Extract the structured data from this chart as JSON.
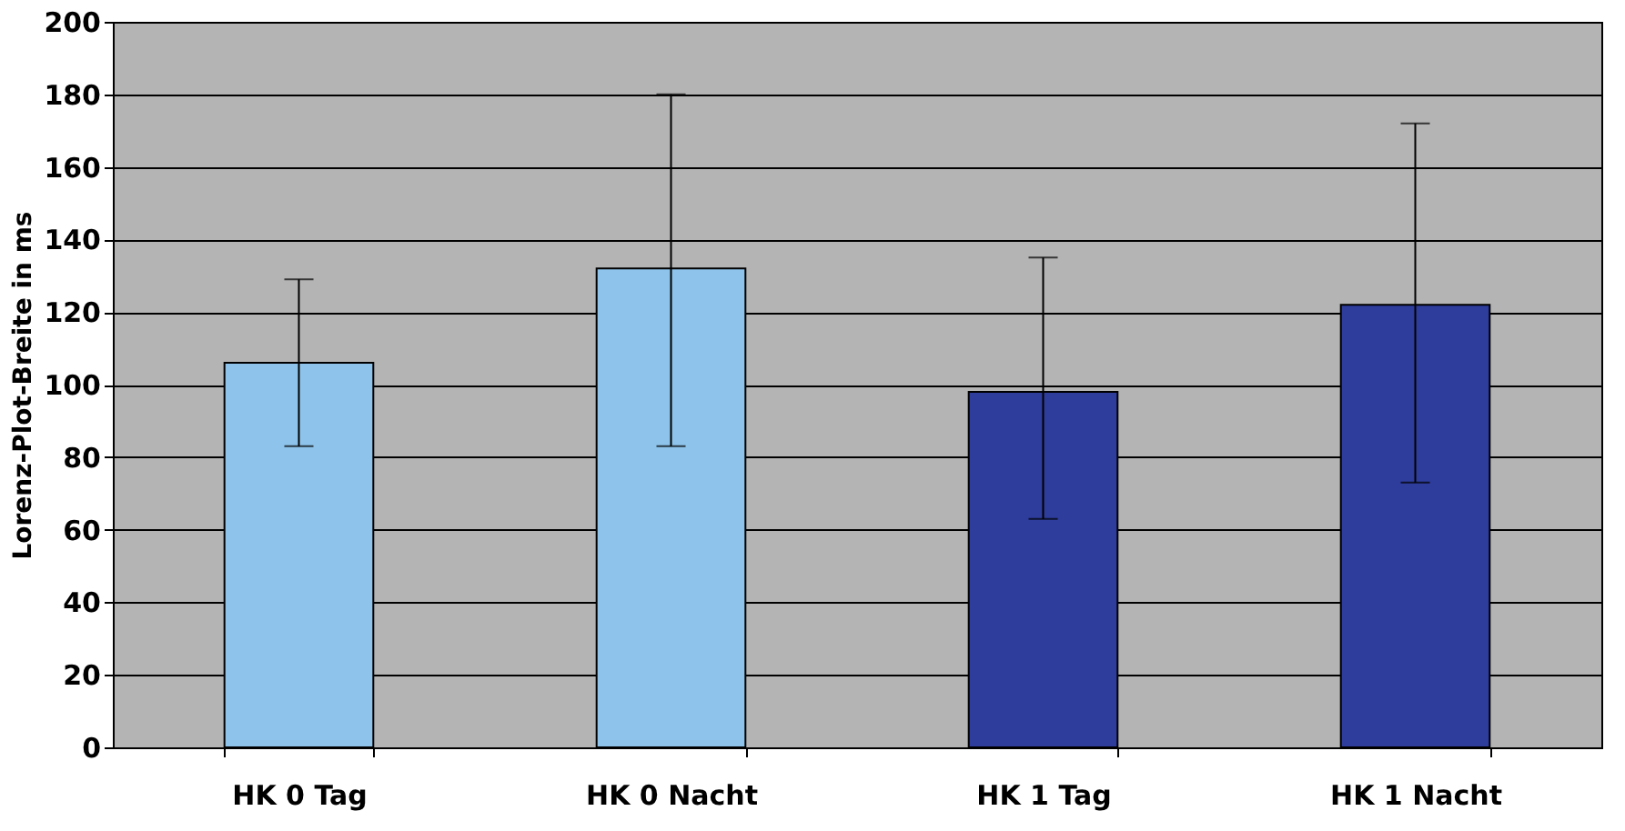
{
  "chart_data": {
    "type": "bar",
    "ylabel": "Lorenz-Plot-Breite in ms",
    "categories": [
      "HK 0 Tag",
      "HK 0 Nacht",
      "HK 1 Tag",
      "HK 1 Nacht"
    ],
    "values": [
      106,
      132,
      98,
      122
    ],
    "colors": [
      "#8ec4ec",
      "#8ec4ec",
      "#2e3c9c",
      "#2e3c9c"
    ],
    "errors": [
      [
        83,
        129
      ],
      [
        83,
        180
      ],
      [
        63,
        135
      ],
      [
        73,
        172
      ]
    ],
    "ylim": [
      0,
      200
    ],
    "yticks": [
      0,
      20,
      40,
      60,
      80,
      100,
      120,
      140,
      160,
      180,
      200
    ],
    "grid": "y"
  }
}
